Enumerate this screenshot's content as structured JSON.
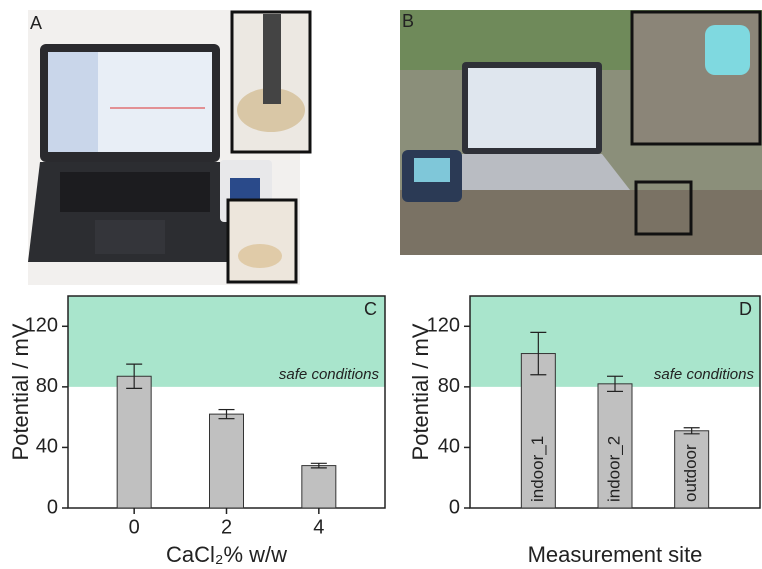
{
  "photo_panels": [
    {
      "label": "A"
    },
    {
      "label": "B"
    }
  ],
  "chart_data": [
    {
      "type": "bar",
      "panel_label": "C",
      "ylabel": "Potential / mV",
      "xlabel": "CaCl₂% w/w",
      "categories": [
        "0",
        "2",
        "4"
      ],
      "values": [
        87,
        62,
        28
      ],
      "errors": [
        8,
        3,
        1.5
      ],
      "ylim": [
        0,
        140
      ],
      "yticks": [
        0,
        40,
        80,
        120
      ],
      "color": "#c0c0c0",
      "category_label_position": "below",
      "safe_zone": {
        "range": [
          80,
          140
        ],
        "label": "safe conditions",
        "color": "#a9e5cc"
      }
    },
    {
      "type": "bar",
      "panel_label": "D",
      "ylabel": "Potential / mV",
      "xlabel": "Measurement site",
      "categories": [
        "indoor_1",
        "indoor_2",
        "outdoor"
      ],
      "values": [
        102,
        82,
        51
      ],
      "errors": [
        14,
        5,
        2
      ],
      "ylim": [
        0,
        140
      ],
      "yticks": [
        0,
        40,
        80,
        120
      ],
      "color": "#c0c0c0",
      "category_label_position": "inside",
      "safe_zone": {
        "range": [
          80,
          140
        ],
        "label": "safe conditions",
        "color": "#a9e5cc"
      }
    }
  ]
}
